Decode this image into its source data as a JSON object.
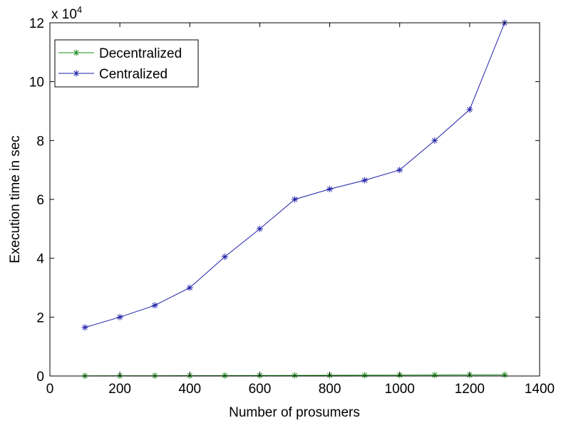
{
  "chart_data": {
    "type": "line",
    "xlabel": "Number of prosumers",
    "ylabel": "Execution time in sec",
    "xlim": [
      0,
      1400
    ],
    "ylim": [
      0,
      120000
    ],
    "x_ticks": [
      "0",
      "200",
      "400",
      "600",
      "800",
      "1000",
      "1200",
      "1400"
    ],
    "y_ticks": [
      "0",
      "2",
      "4",
      "6",
      "8",
      "10",
      "12"
    ],
    "y_multiplier": {
      "base": "x 10",
      "exponent": "4"
    },
    "grid": false,
    "legend_position": "top-left",
    "series": [
      {
        "name": "Decentralized",
        "color": "#1a8a1a",
        "marker": "asterisk",
        "x": [
          100,
          200,
          300,
          400,
          500,
          600,
          700,
          800,
          900,
          1000,
          1100,
          1200,
          1300
        ],
        "y": [
          60,
          80,
          100,
          120,
          150,
          180,
          200,
          230,
          260,
          300,
          330,
          370,
          400
        ]
      },
      {
        "name": "Centralized",
        "color": "#1f1fa8",
        "marker": "asterisk",
        "x": [
          100,
          200,
          300,
          400,
          500,
          600,
          700,
          800,
          900,
          1000,
          1100,
          1200,
          1300
        ],
        "y": [
          16500,
          20000,
          24000,
          30000,
          40500,
          50000,
          60000,
          63500,
          66500,
          70000,
          80000,
          90500,
          120000
        ]
      }
    ]
  }
}
